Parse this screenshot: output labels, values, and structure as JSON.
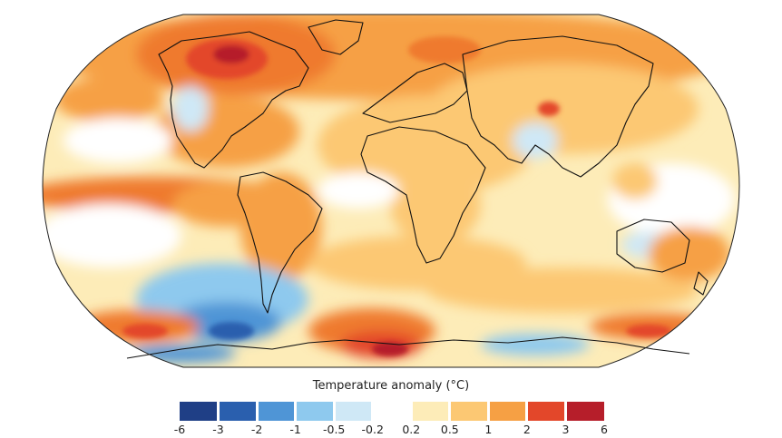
{
  "legend": {
    "title": "Temperature anomaly (°C)",
    "tick_labels": [
      "-6",
      "-3",
      "-2",
      "-1",
      "-0.5",
      "-0.2",
      "0.2",
      "0.5",
      "1",
      "2",
      "3",
      "6"
    ],
    "bins": [
      {
        "from": "-6",
        "to": "-3",
        "color": "#1f3f86"
      },
      {
        "from": "-3",
        "to": "-2",
        "color": "#2a5fae"
      },
      {
        "from": "-2",
        "to": "-1",
        "color": "#4f95d6"
      },
      {
        "from": "-1",
        "to": "-0.5",
        "color": "#8ec9ee"
      },
      {
        "from": "-0.5",
        "to": "-0.2",
        "color": "#cfe8f6"
      },
      {
        "from": "-0.2",
        "to": "0.2",
        "color": "#ffffff"
      },
      {
        "from": "0.2",
        "to": "0.5",
        "color": "#fdecb8"
      },
      {
        "from": "0.5",
        "to": "1",
        "color": "#fcc873"
      },
      {
        "from": "1",
        "to": "2",
        "color": "#f6a044"
      },
      {
        "from": "2",
        "to": "3",
        "color": "#ef7a2e"
      },
      {
        "from": "3",
        "to": "6",
        "color": "#e3472a"
      },
      {
        "from": "6",
        "to": "",
        "color": "#b61e2a"
      }
    ]
  },
  "map": {
    "projection": "Robinson-like world map",
    "background_anomaly_color": "#fdecb8"
  }
}
